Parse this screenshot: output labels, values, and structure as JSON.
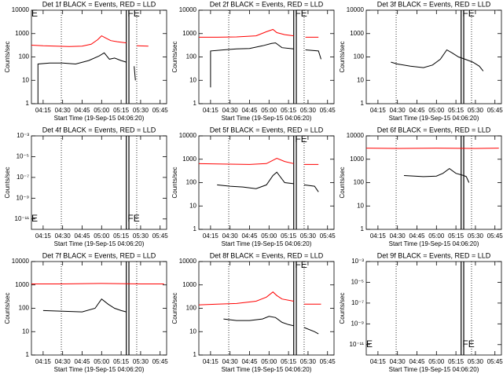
{
  "chart_data": [
    {
      "type": "line",
      "title": "Det 1f BLACK = Events, RED = LLD",
      "x_label": "Start Time (19-Sep-15 04:06:20)",
      "y_label": "Counts/sec",
      "log_y": true,
      "xlim": [
        "04:06",
        "05:50"
      ],
      "xticks": [
        "04:15",
        "04:30",
        "04:45",
        "05:00",
        "05:15",
        "05:30",
        "05:45"
      ],
      "ylim": [
        1,
        10000
      ],
      "yticks": [
        1,
        10,
        100,
        1000,
        10000
      ],
      "series": [
        {
          "color": "#ff0000",
          "x": [
            "04:06",
            "04:15",
            "04:25",
            "04:35",
            "04:45",
            "04:52",
            "04:57",
            "05:00",
            "05:03",
            "05:07",
            "05:12",
            "05:19",
            "05:23",
            "05:27",
            "05:36"
          ],
          "values": [
            320,
            300,
            290,
            280,
            290,
            350,
            550,
            800,
            650,
            500,
            450,
            400,
            null,
            300,
            290
          ]
        },
        {
          "color": "#000000",
          "x": [
            "04:11",
            "04:11",
            "04:20",
            "04:30",
            "04:40",
            "04:50",
            "04:58",
            "05:02",
            "05:06",
            "05:10",
            "05:15",
            "05:19",
            "05:22",
            "05:25",
            "05:26"
          ],
          "values": [
            1,
            50,
            55,
            55,
            50,
            70,
            110,
            150,
            80,
            90,
            70,
            60,
            null,
            40,
            10
          ]
        }
      ],
      "markers": [
        {
          "x": "04:29",
          "style": "dotted"
        },
        {
          "x": "05:19",
          "style": "solid"
        },
        {
          "x": "05:21",
          "style": "solid"
        },
        {
          "x": "05:27",
          "style": "dotted"
        }
      ],
      "annotations": [
        {
          "text": "E",
          "x": "04:06",
          "y": 7000
        },
        {
          "text": "FE",
          "x": "05:20",
          "y": 7000
        }
      ]
    },
    {
      "type": "line",
      "title": "Det 2f BLACK = Events, RED = LLD",
      "x_label": "Start Time (19-Sep-15 04:06:20)",
      "y_label": "Counts/sec",
      "log_y": true,
      "xlim": [
        "04:06",
        "05:50"
      ],
      "xticks": [
        "04:15",
        "04:30",
        "04:45",
        "05:00",
        "05:15",
        "05:30",
        "05:45"
      ],
      "ylim": [
        1,
        10000
      ],
      "yticks": [
        1,
        10,
        100,
        1000,
        10000
      ],
      "series": [
        {
          "color": "#ff0000",
          "x": [
            "04:06",
            "04:20",
            "04:35",
            "04:50",
            "04:58",
            "05:03",
            "05:06",
            "05:12",
            "05:19",
            "05:23",
            "05:28",
            "05:38"
          ],
          "values": [
            700,
            700,
            720,
            800,
            1200,
            1500,
            1100,
            900,
            800,
            null,
            700,
            700
          ]
        },
        {
          "color": "#000000",
          "x": [
            "04:15",
            "04:15",
            "04:25",
            "04:35",
            "04:45",
            "04:55",
            "05:02",
            "05:05",
            "05:10",
            "05:19",
            "05:23",
            "05:28",
            "05:38",
            "05:40"
          ],
          "values": [
            5,
            180,
            200,
            220,
            230,
            300,
            380,
            400,
            250,
            220,
            null,
            200,
            180,
            80
          ]
        }
      ],
      "markers": [
        {
          "x": "04:29",
          "style": "dotted"
        },
        {
          "x": "05:19",
          "style": "solid"
        },
        {
          "x": "05:21",
          "style": "solid"
        },
        {
          "x": "05:27",
          "style": "dotted"
        }
      ],
      "annotations": [
        {
          "text": "FE",
          "x": "05:20",
          "y": 7000
        }
      ]
    },
    {
      "type": "line",
      "title": "Det 3f BLACK = Events, RED = LLD",
      "x_label": "Start Time (19-Sep-15 04:06:20)",
      "y_label": "Counts/sec",
      "log_y": true,
      "xlim": [
        "04:06",
        "05:50"
      ],
      "xticks": [
        "04:15",
        "04:30",
        "04:45",
        "05:00",
        "05:15",
        "05:30",
        "05:45"
      ],
      "ylim": [
        1,
        10000
      ],
      "yticks": [
        1,
        10,
        100,
        1000,
        10000
      ],
      "series": [
        {
          "color": "#000000",
          "x": [
            "04:25",
            "04:30",
            "04:40",
            "04:50",
            "04:57",
            "05:03",
            "05:08",
            "05:12",
            "05:17",
            "05:22",
            "05:28",
            "05:33",
            "05:36"
          ],
          "values": [
            60,
            50,
            40,
            35,
            45,
            80,
            200,
            150,
            100,
            80,
            60,
            40,
            25
          ]
        }
      ],
      "markers": [
        {
          "x": "04:29",
          "style": "dotted"
        },
        {
          "x": "05:19",
          "style": "solid"
        },
        {
          "x": "05:21",
          "style": "solid"
        },
        {
          "x": "05:27",
          "style": "dotted"
        }
      ],
      "annotations": [
        {
          "text": "FE",
          "x": "05:20",
          "y": 7000
        }
      ]
    },
    {
      "type": "line",
      "title": "Det 4f BLACK = Events, RED = LLD",
      "x_label": "Start Time (19-Sep-15 04:06:20)",
      "y_label": "Counts/sec",
      "log_y": true,
      "xlim": [
        "04:06",
        "05:50"
      ],
      "xticks": [
        "04:15",
        "04:30",
        "04:45",
        "05:00",
        "05:15",
        "05:30",
        "05:45"
      ],
      "ylim": [
        1e-12,
        0.001
      ],
      "yticks": [
        {
          "value": 1e-11,
          "label": "10⁻¹¹"
        },
        {
          "value": 1e-09,
          "label": "10⁻⁹"
        },
        {
          "value": 1e-07,
          "label": "10⁻⁷"
        },
        {
          "value": 1e-05,
          "label": "10⁻⁵"
        },
        {
          "value": 0.001,
          "label": "10⁻³"
        }
      ],
      "series": [],
      "markers": [
        {
          "x": "04:29",
          "style": "dotted"
        },
        {
          "x": "05:19",
          "style": "solid"
        },
        {
          "x": "05:21",
          "style": "solid"
        },
        {
          "x": "05:27",
          "style": "dotted"
        }
      ],
      "annotations": [
        {
          "text": "E",
          "x": "04:06",
          "y": 1e-11
        },
        {
          "text": "FE",
          "x": "05:20",
          "y": 1e-11
        }
      ]
    },
    {
      "type": "line",
      "title": "Det 5f BLACK = Events, RED = LLD",
      "x_label": "Start Time (19-Sep-15 04:06:20)",
      "y_label": "Counts/sec",
      "log_y": true,
      "xlim": [
        "04:06",
        "05:50"
      ],
      "xticks": [
        "04:15",
        "04:30",
        "04:45",
        "05:00",
        "05:15",
        "05:30",
        "05:45"
      ],
      "ylim": [
        1,
        10000
      ],
      "yticks": [
        1,
        10,
        100,
        1000,
        10000
      ],
      "series": [
        {
          "color": "#ff0000",
          "x": [
            "04:06",
            "04:25",
            "04:45",
            "04:58",
            "05:03",
            "05:06",
            "05:12",
            "05:19",
            "05:23",
            "05:27",
            "05:38"
          ],
          "values": [
            650,
            620,
            600,
            650,
            900,
            1100,
            800,
            650,
            null,
            600,
            600
          ]
        },
        {
          "color": "#000000",
          "x": [
            "04:20",
            "04:30",
            "04:40",
            "04:50",
            "04:58",
            "05:03",
            "05:06",
            "05:12",
            "05:19",
            "05:23",
            "05:27",
            "05:35",
            "05:38"
          ],
          "values": [
            80,
            70,
            65,
            55,
            80,
            200,
            280,
            100,
            90,
            null,
            80,
            70,
            40
          ]
        }
      ],
      "markers": [
        {
          "x": "04:29",
          "style": "dotted"
        },
        {
          "x": "05:19",
          "style": "solid"
        },
        {
          "x": "05:21",
          "style": "solid"
        },
        {
          "x": "05:27",
          "style": "dotted"
        }
      ],
      "annotations": [
        {
          "text": "FE",
          "x": "05:20",
          "y": 7000
        }
      ]
    },
    {
      "type": "line",
      "title": "Det 6f BLACK = Events, RED = LLD",
      "x_label": "Start Time (19-Sep-15 04:06:20)",
      "y_label": "Counts/sec",
      "log_y": true,
      "xlim": [
        "04:06",
        "05:50"
      ],
      "xticks": [
        "04:15",
        "04:30",
        "04:45",
        "05:00",
        "05:15",
        "05:30",
        "05:45"
      ],
      "ylim": [
        1,
        10000
      ],
      "yticks": [
        1,
        10,
        100,
        1000,
        10000
      ],
      "series": [
        {
          "color": "#ff0000",
          "x": [
            "04:06",
            "04:30",
            "05:00",
            "05:30",
            "05:48"
          ],
          "values": [
            3000,
            2900,
            3000,
            2900,
            3000
          ]
        },
        {
          "color": "#000000",
          "x": [
            "04:35",
            "04:50",
            "05:00",
            "05:05",
            "05:10",
            "05:15",
            "05:21",
            "05:23",
            "05:25"
          ],
          "values": [
            200,
            180,
            190,
            250,
            400,
            250,
            200,
            180,
            100
          ]
        }
      ],
      "markers": [
        {
          "x": "04:29",
          "style": "dotted"
        },
        {
          "x": "05:19",
          "style": "solid"
        },
        {
          "x": "05:21",
          "style": "solid"
        },
        {
          "x": "05:27",
          "style": "dotted"
        }
      ],
      "annotations": []
    },
    {
      "type": "line",
      "title": "Det 7f BLACK = Events, RED = LLD",
      "x_label": "Start Time (19-Sep-15 04:06:20)",
      "y_label": "Counts/sec",
      "log_y": true,
      "xlim": [
        "04:06",
        "05:50"
      ],
      "xticks": [
        "04:15",
        "04:30",
        "04:45",
        "05:00",
        "05:15",
        "05:30",
        "05:45"
      ],
      "ylim": [
        1,
        10000
      ],
      "yticks": [
        1,
        10,
        100,
        1000,
        10000
      ],
      "series": [
        {
          "color": "#ff0000",
          "x": [
            "04:06",
            "04:30",
            "05:00",
            "05:30",
            "05:48"
          ],
          "values": [
            1100,
            1100,
            1150,
            1100,
            1100
          ]
        },
        {
          "color": "#000000",
          "x": [
            "04:15",
            "04:30",
            "04:45",
            "04:55",
            "05:00",
            "05:05",
            "05:10",
            "05:15",
            "05:19",
            "05:21",
            "05:22"
          ],
          "values": [
            80,
            75,
            70,
            100,
            250,
            150,
            100,
            80,
            70,
            null,
            80
          ]
        }
      ],
      "markers": [
        {
          "x": "04:29",
          "style": "dotted"
        },
        {
          "x": "05:19",
          "style": "solid"
        },
        {
          "x": "05:21",
          "style": "solid"
        },
        {
          "x": "05:27",
          "style": "dotted"
        }
      ],
      "annotations": []
    },
    {
      "type": "line",
      "title": "Det 8f BLACK = Events, RED = LLD",
      "x_label": "Start Time (19-Sep-15 04:06:20)",
      "y_label": "Counts/sec",
      "log_y": true,
      "xlim": [
        "04:06",
        "05:50"
      ],
      "xticks": [
        "04:15",
        "04:30",
        "04:45",
        "05:00",
        "05:15",
        "05:30",
        "05:45"
      ],
      "ylim": [
        1,
        10000
      ],
      "yticks": [
        1,
        10,
        100,
        1000,
        10000
      ],
      "series": [
        {
          "color": "#ff0000",
          "x": [
            "04:06",
            "04:20",
            "04:35",
            "04:50",
            "04:58",
            "05:03",
            "05:06",
            "05:10",
            "05:19",
            "05:23",
            "05:27",
            "05:40"
          ],
          "values": [
            140,
            150,
            160,
            200,
            300,
            500,
            350,
            250,
            200,
            null,
            150,
            150
          ]
        },
        {
          "color": "#000000",
          "x": [
            "04:25",
            "04:35",
            "04:45",
            "04:55",
            "05:00",
            "05:05",
            "05:10",
            "05:15",
            "05:19",
            "05:23",
            "05:27",
            "05:35",
            "05:38"
          ],
          "values": [
            35,
            30,
            30,
            35,
            45,
            40,
            25,
            20,
            18,
            null,
            15,
            10,
            8
          ]
        }
      ],
      "markers": [
        {
          "x": "04:29",
          "style": "dotted"
        },
        {
          "x": "05:19",
          "style": "solid"
        },
        {
          "x": "05:21",
          "style": "solid"
        },
        {
          "x": "05:27",
          "style": "dotted"
        }
      ],
      "annotations": [
        {
          "text": "FE",
          "x": "05:20",
          "y": 7000
        }
      ]
    },
    {
      "type": "line",
      "title": "Det 9f BLACK = Events, RED = LLD",
      "x_label": "Start Time (19-Sep-15 04:06:20)",
      "y_label": "Counts/sec",
      "log_y": true,
      "xlim": [
        "04:06",
        "05:50"
      ],
      "xticks": [
        "04:15",
        "04:30",
        "04:45",
        "05:00",
        "05:15",
        "05:30",
        "05:45"
      ],
      "ylim": [
        1e-12,
        0.001
      ],
      "yticks": [
        {
          "value": 1e-11,
          "label": "10⁻¹¹"
        },
        {
          "value": 1e-09,
          "label": "10⁻⁹"
        },
        {
          "value": 1e-07,
          "label": "10⁻⁷"
        },
        {
          "value": 1e-05,
          "label": "10⁻⁵"
        },
        {
          "value": 0.001,
          "label": "10⁻³"
        }
      ],
      "series": [],
      "markers": [
        {
          "x": "04:29",
          "style": "dotted"
        },
        {
          "x": "05:19",
          "style": "solid"
        },
        {
          "x": "05:21",
          "style": "solid"
        },
        {
          "x": "05:27",
          "style": "dotted"
        }
      ],
      "annotations": [
        {
          "text": "E",
          "x": "04:06",
          "y": 1e-11
        },
        {
          "text": "FE",
          "x": "05:20",
          "y": 1e-11
        }
      ]
    }
  ]
}
